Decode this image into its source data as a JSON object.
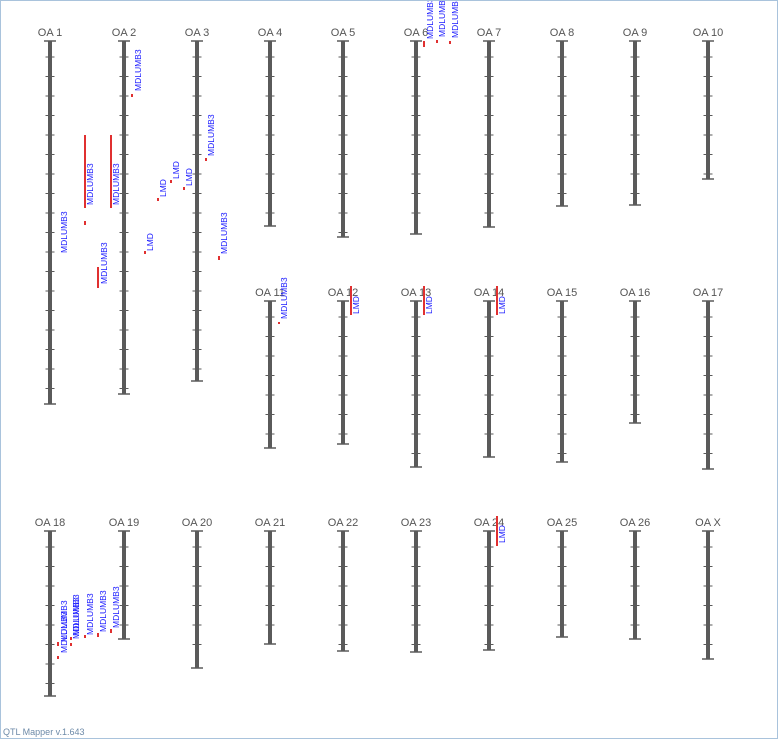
{
  "app": {
    "version_text": "QTL Mapper v.1.643"
  },
  "colors": {
    "chromosome": "#5a5a5a",
    "qtl_bar": "#e03030",
    "qtl_text": "#1a1aff",
    "label": "#555555"
  },
  "chromosomes": [
    {
      "id": "OA 1"
    },
    {
      "id": "OA 2"
    },
    {
      "id": "OA 3"
    },
    {
      "id": "OA 4"
    },
    {
      "id": "OA 5"
    },
    {
      "id": "OA 6"
    },
    {
      "id": "OA 7"
    },
    {
      "id": "OA 8"
    },
    {
      "id": "OA 9"
    },
    {
      "id": "OA 10"
    },
    {
      "id": "OA 11"
    },
    {
      "id": "OA 12"
    },
    {
      "id": "OA 13"
    },
    {
      "id": "OA 14"
    },
    {
      "id": "OA 15"
    },
    {
      "id": "OA 16"
    },
    {
      "id": "OA 17"
    },
    {
      "id": "OA 18"
    },
    {
      "id": "OA 19"
    },
    {
      "id": "OA 20"
    },
    {
      "id": "OA 21"
    },
    {
      "id": "OA 22"
    },
    {
      "id": "OA 23"
    },
    {
      "id": "OA 24"
    },
    {
      "id": "OA 25"
    },
    {
      "id": "OA 26"
    },
    {
      "id": "OA X"
    }
  ],
  "qtls": [
    {
      "chromosome": "OA 1",
      "trait": "MDLUMB3"
    },
    {
      "chromosome": "OA 1",
      "trait": "MDLUMB3"
    },
    {
      "chromosome": "OA 1",
      "trait": "MDLUMB3"
    },
    {
      "chromosome": "OA 1",
      "trait": "MDLUMB3"
    },
    {
      "chromosome": "OA 1",
      "trait": "MDLUMB3"
    },
    {
      "chromosome": "OA 2",
      "trait": "MDLUMB3"
    },
    {
      "chromosome": "OA 2",
      "trait": "LMD"
    },
    {
      "chromosome": "OA 2",
      "trait": "LMD"
    },
    {
      "chromosome": "OA 2",
      "trait": "LMD"
    },
    {
      "chromosome": "OA 2",
      "trait": "LMD"
    },
    {
      "chromosome": "OA 3",
      "trait": "MDLUMB3"
    },
    {
      "chromosome": "OA 3",
      "trait": "MDLUMB3"
    },
    {
      "chromosome": "OA 3",
      "trait": "MDLUMB3"
    },
    {
      "chromosome": "OA 6",
      "trait": "MDLUMB3"
    },
    {
      "chromosome": "OA 6",
      "trait": "MDLUMB3"
    },
    {
      "chromosome": "OA 6",
      "trait": "MDLUMB3"
    },
    {
      "chromosome": "OA 11",
      "trait": "MDLUMB3"
    },
    {
      "chromosome": "OA 12",
      "trait": "LMD"
    },
    {
      "chromosome": "OA 13",
      "trait": "LMD"
    },
    {
      "chromosome": "OA 14",
      "trait": "LMD"
    },
    {
      "chromosome": "OA 18",
      "trait": "MDLUMB3"
    },
    {
      "chromosome": "OA 18",
      "trait": "MDLUMB3"
    },
    {
      "chromosome": "OA 18",
      "trait": "MDLUMB3"
    },
    {
      "chromosome": "OA 18",
      "trait": "MDLUMB3"
    },
    {
      "chromosome": "OA 18",
      "trait": "MDLUMB3"
    },
    {
      "chromosome": "OA 24",
      "trait": "LMD"
    }
  ]
}
